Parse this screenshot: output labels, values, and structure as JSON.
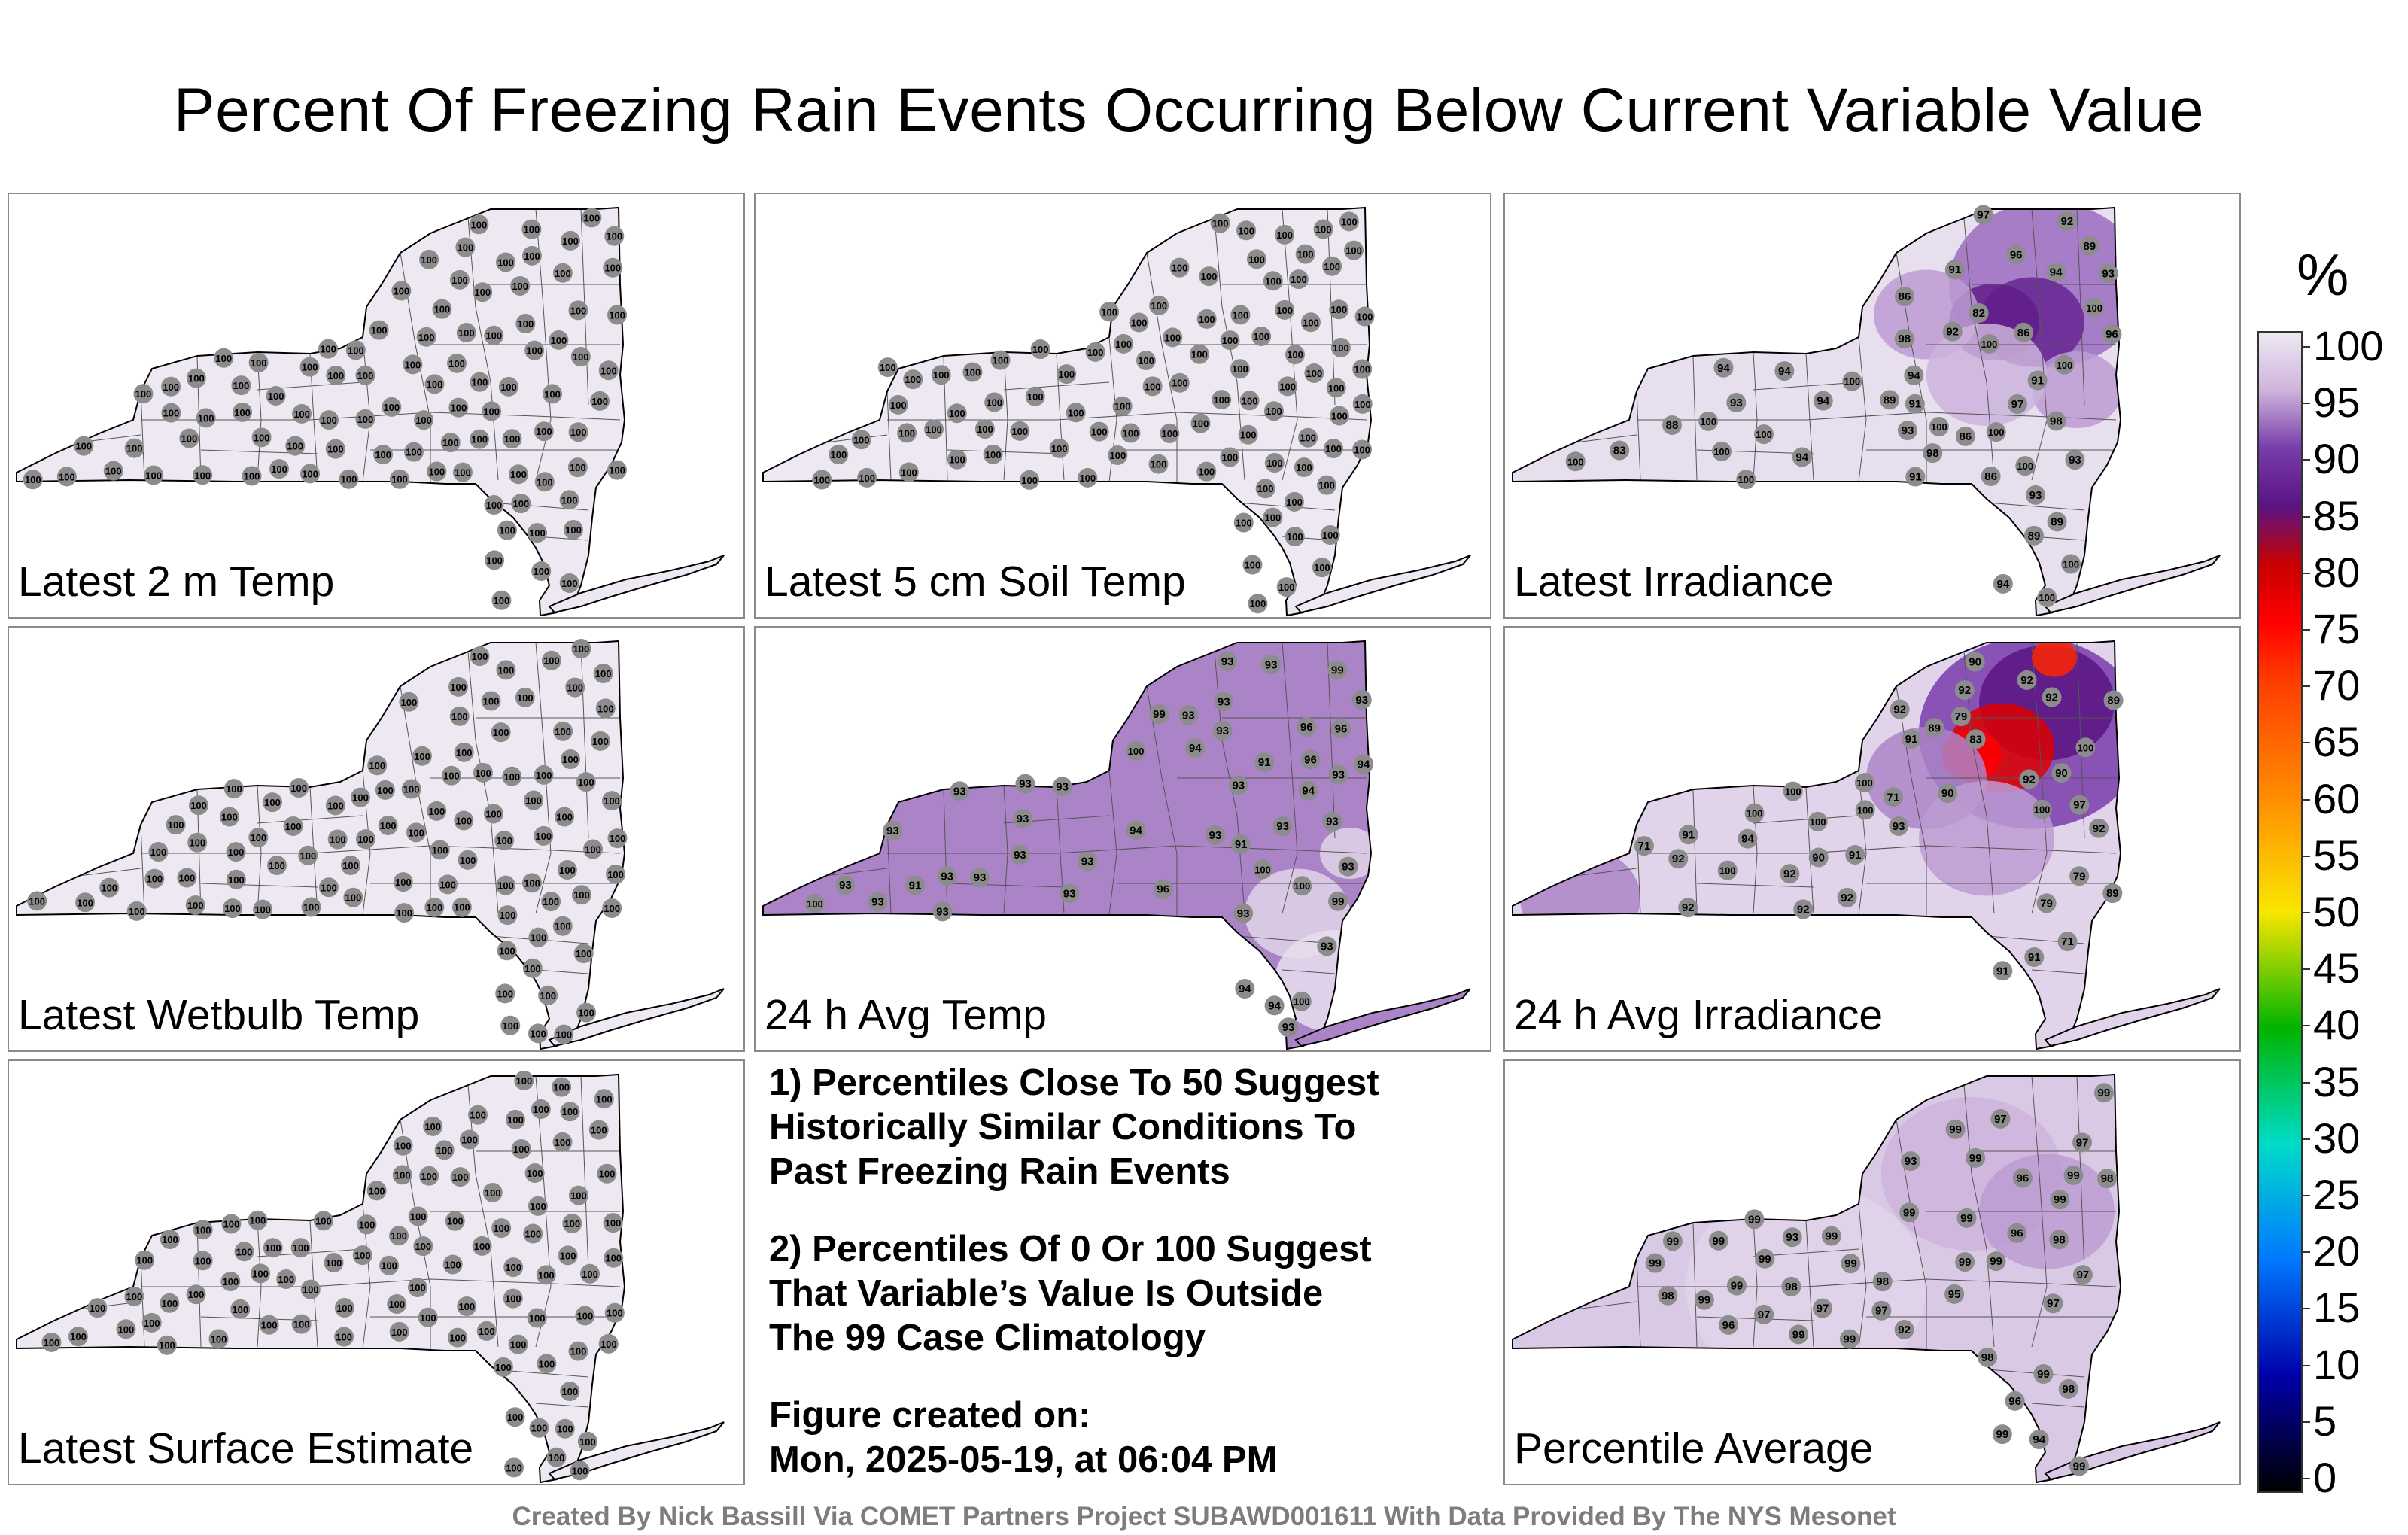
{
  "title": "Percent Of Freezing Rain Events Occurring Below Current Variable Value",
  "panels": [
    {
      "label": "Latest 2 m Temp",
      "style": "uniform",
      "stations": [
        100
      ]
    },
    {
      "label": "Latest 5 cm Soil Temp",
      "style": "uniform",
      "stations": [
        100
      ]
    },
    {
      "label": "Latest Irradiance",
      "style": "irr",
      "stations": [
        96,
        89,
        91,
        89,
        88,
        93,
        94,
        98,
        94,
        93,
        86,
        82,
        86,
        93,
        91,
        94,
        94,
        93,
        83,
        98,
        94,
        93,
        94,
        91,
        100,
        89,
        86,
        91,
        92,
        94,
        89,
        100,
        100,
        100,
        100,
        100,
        100,
        100,
        100,
        98,
        100,
        97,
        92,
        97,
        96,
        86,
        100,
        100,
        100,
        100
      ]
    },
    {
      "label": "Latest Wetbulb Temp",
      "style": "uniform",
      "stations": [
        100
      ]
    },
    {
      "label": "24 h Avg Temp",
      "style": "avgtemp",
      "stations": [
        93,
        93,
        93,
        93,
        93,
        91,
        91,
        93,
        93,
        93,
        94,
        93,
        91,
        93,
        93,
        93,
        94,
        93,
        93,
        99,
        93,
        96,
        93,
        93,
        93,
        93,
        93,
        94,
        96,
        96,
        99,
        93,
        94,
        93,
        93,
        94,
        93,
        93,
        93,
        93,
        93,
        96,
        94,
        99,
        100,
        100,
        100,
        100,
        100
      ]
    },
    {
      "label": "24 h Avg Irradiance",
      "style": "irr2",
      "stations": [
        89,
        71,
        91,
        90,
        89,
        92,
        92,
        89,
        83,
        91,
        71,
        79,
        79,
        92,
        79,
        71,
        91,
        90,
        90,
        90,
        92,
        92,
        92,
        92,
        92,
        91,
        92,
        91,
        100,
        100,
        100,
        93,
        92,
        92,
        94,
        97,
        100,
        100,
        100,
        100,
        100
      ]
    },
    {
      "label": "Latest Surface Estimate",
      "style": "uniform",
      "stations": [
        100
      ]
    },
    {
      "label": "Percentile Average",
      "style": "avg",
      "stations": [
        97,
        96,
        93,
        96,
        96,
        98,
        97,
        95,
        94,
        96,
        92,
        93,
        98,
        97,
        97,
        98,
        99,
        99,
        99,
        99,
        98,
        97,
        98,
        99,
        98,
        97,
        99,
        97,
        99,
        99,
        98,
        99,
        99,
        99,
        99,
        99,
        99,
        99,
        99,
        99,
        99,
        99,
        99,
        99,
        99,
        99
      ]
    }
  ],
  "notes": {
    "note1": [
      "1) Percentiles Close To 50 Suggest",
      "Historically Similar Conditions To",
      "Past Freezing Rain Events"
    ],
    "note2": [
      "2) Percentiles Of 0 Or 100 Suggest",
      "That Variable’s Value Is Outside",
      "The 99 Case Climatology"
    ],
    "created_label": "Figure created on:",
    "created_value": "Mon, 2025-05-19, at 06:04 PM"
  },
  "colorbar": {
    "unit": "%",
    "ticks": [
      "100",
      "95",
      "90",
      "85",
      "80",
      "75",
      "70",
      "65",
      "60",
      "55",
      "50",
      "45",
      "40",
      "35",
      "30",
      "25",
      "20",
      "15",
      "10",
      "5",
      "0"
    ]
  },
  "footer": "Created By Nick Bassill Via COMET Partners Project SUBAWD001611 With Data Provided By The NYS Mesonet"
}
